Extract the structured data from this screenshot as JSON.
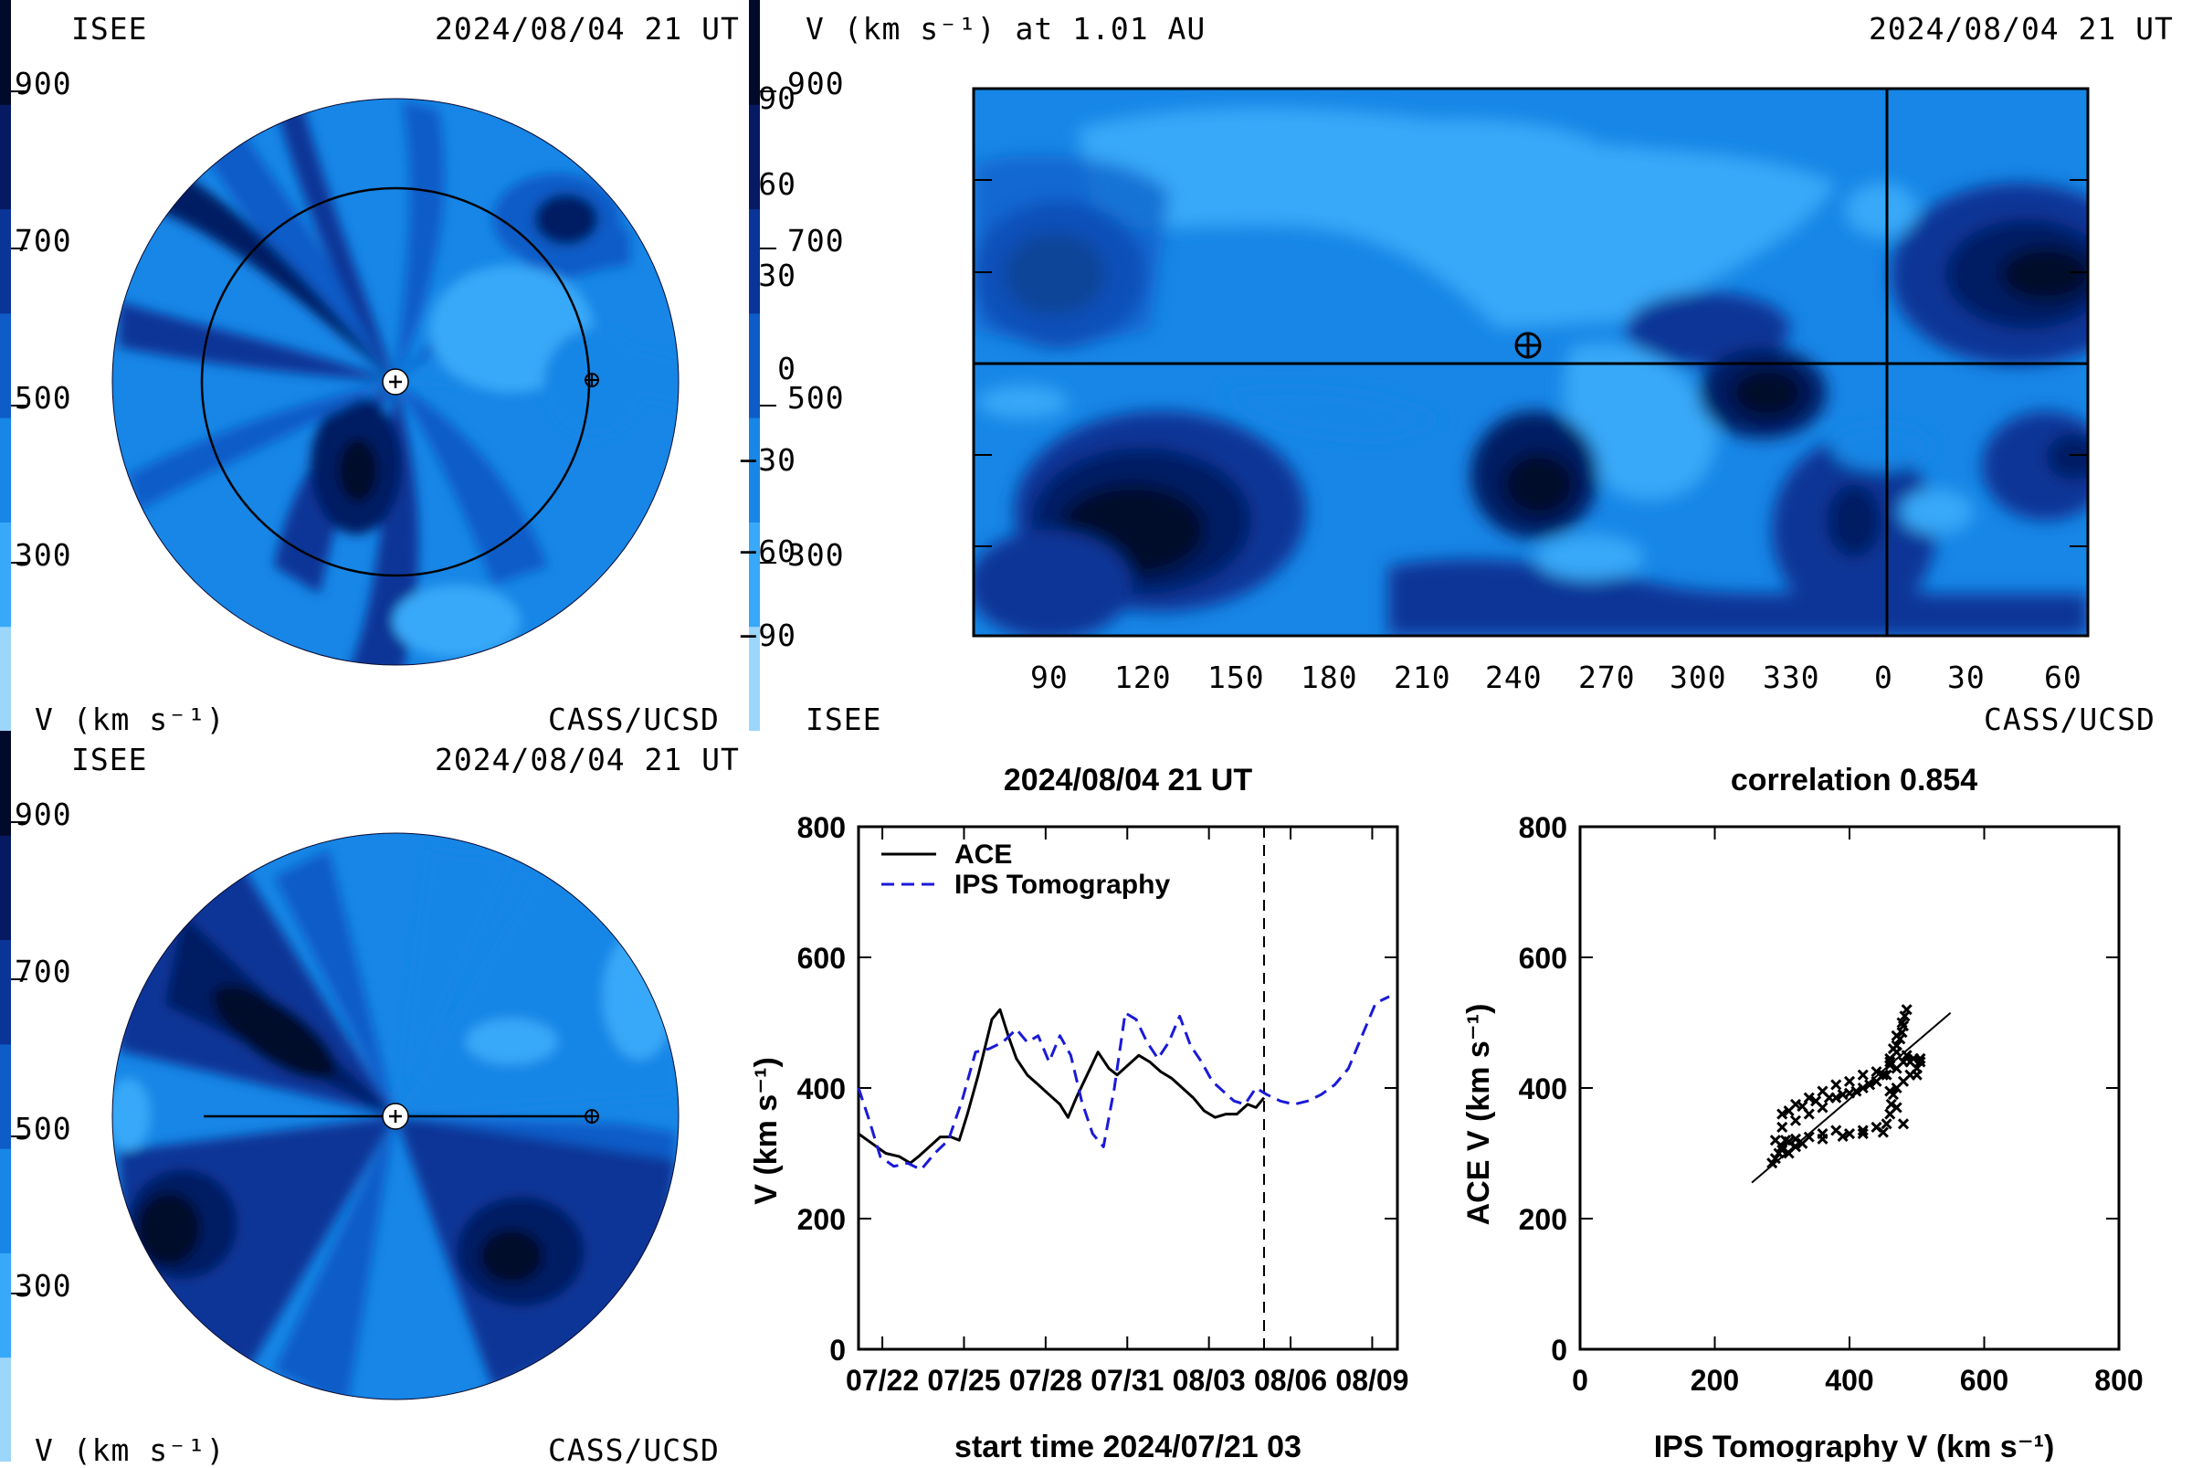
{
  "colorbar": {
    "colors": [
      "#9dd6fb",
      "#38a8f8",
      "#1786e6",
      "#0d5cc7",
      "#0a3497",
      "#061a63",
      "#020a2b"
    ],
    "ticks": [
      "900",
      "700",
      "500",
      "300"
    ]
  },
  "top_left": {
    "org_left": "ISEE",
    "datetime": "2024/08/04 21 UT",
    "units": "V (km s⁻¹)",
    "org_right": "CASS/UCSD"
  },
  "top_right": {
    "title": "V (km s⁻¹) at 1.01 AU",
    "datetime": "2024/08/04 21 UT",
    "org_left": "ISEE",
    "org_right": "CASS/UCSD",
    "y_ticks": [
      "90",
      "60",
      "30",
      "0",
      "−30",
      "−60",
      "−90"
    ],
    "x_ticks": [
      "90",
      "120",
      "150",
      "180",
      "210",
      "240",
      "270",
      "300",
      "330",
      "0",
      "30",
      "60"
    ]
  },
  "bottom_left": {
    "org_left": "ISEE",
    "datetime": "2024/08/04 21 UT",
    "units": "V (km s⁻¹)",
    "org_right": "CASS/UCSD"
  },
  "chart_data": [
    {
      "type": "line",
      "title": "2024/08/04 21 UT",
      "xlabel": "start time 2024/07/21 03",
      "ylabel": "V (km s⁻¹)",
      "ylim": [
        0,
        800
      ],
      "xlim": [
        0,
        19.8
      ],
      "x_tick_labels": [
        "07/22",
        "07/25",
        "07/28",
        "07/31",
        "08/03",
        "08/06",
        "08/09"
      ],
      "x_tick_positions": [
        0.875,
        3.875,
        6.875,
        9.875,
        12.875,
        15.875,
        18.875
      ],
      "y_ticks": [
        0,
        200,
        400,
        600,
        800
      ],
      "vline_x": 14.9,
      "series": [
        {
          "name": "ACE",
          "style": "solid",
          "color": "#000000",
          "x": [
            0,
            0.5,
            1,
            1.5,
            1.9,
            2.2,
            2.6,
            3.0,
            3.4,
            3.7,
            4.0,
            4.4,
            4.9,
            5.2,
            5.5,
            5.8,
            6.2,
            6.6,
            7.0,
            7.4,
            7.7,
            8.0,
            8.4,
            8.8,
            9.2,
            9.5,
            9.9,
            10.3,
            10.7,
            11.1,
            11.5,
            11.9,
            12.3,
            12.7,
            13.1,
            13.5,
            13.9,
            14.3,
            14.6,
            14.9
          ],
          "values": [
            330,
            315,
            300,
            295,
            285,
            295,
            310,
            325,
            325,
            320,
            360,
            420,
            505,
            520,
            480,
            445,
            420,
            405,
            390,
            375,
            355,
            385,
            420,
            455,
            430,
            420,
            435,
            450,
            440,
            425,
            415,
            400,
            385,
            365,
            355,
            360,
            360,
            375,
            370,
            385
          ]
        },
        {
          "name": "IPS Tomography",
          "style": "dashed",
          "color": "#1a1ad8",
          "x": [
            0,
            0.4,
            0.8,
            1.3,
            1.8,
            2.3,
            2.8,
            3.3,
            3.8,
            4.3,
            4.8,
            5.3,
            5.8,
            6.2,
            6.6,
            7.0,
            7.4,
            7.8,
            8.2,
            8.6,
            9.0,
            9.4,
            9.8,
            10.2,
            10.6,
            11.0,
            11.4,
            11.8,
            12.2,
            12.6,
            13.0,
            13.4,
            13.8,
            14.2,
            14.6,
            15.0,
            15.5,
            16.0,
            16.5,
            17.0,
            17.5,
            18.0,
            18.5,
            19.0,
            19.5
          ],
          "values": [
            400,
            350,
            295,
            280,
            285,
            275,
            300,
            320,
            380,
            455,
            460,
            470,
            490,
            470,
            480,
            440,
            480,
            450,
            380,
            330,
            310,
            400,
            515,
            505,
            470,
            445,
            470,
            510,
            465,
            440,
            410,
            395,
            380,
            375,
            400,
            390,
            380,
            375,
            380,
            390,
            405,
            430,
            480,
            530,
            540
          ]
        }
      ]
    },
    {
      "type": "scatter",
      "title": "correlation 0.854",
      "xlabel": "IPS Tomography V (km s⁻¹)",
      "ylabel": "ACE V (km s⁻¹)",
      "xlim": [
        0,
        800
      ],
      "ylim": [
        0,
        800
      ],
      "x_ticks": [
        0,
        200,
        400,
        600,
        800
      ],
      "y_ticks": [
        0,
        200,
        400,
        600,
        800
      ],
      "fit_line": {
        "x": [
          255,
          550
        ],
        "y": [
          255,
          515
        ]
      },
      "points": [
        [
          285,
          285
        ],
        [
          290,
          292
        ],
        [
          295,
          300
        ],
        [
          300,
          305
        ],
        [
          310,
          300
        ],
        [
          320,
          310
        ],
        [
          305,
          320
        ],
        [
          310,
          318
        ],
        [
          320,
          322
        ],
        [
          340,
          325
        ],
        [
          360,
          330
        ],
        [
          380,
          335
        ],
        [
          400,
          330
        ],
        [
          420,
          335
        ],
        [
          440,
          340
        ],
        [
          455,
          345
        ],
        [
          460,
          360
        ],
        [
          462,
          375
        ],
        [
          465,
          390
        ],
        [
          470,
          400
        ],
        [
          480,
          410
        ],
        [
          490,
          420
        ],
        [
          500,
          430
        ],
        [
          505,
          440
        ],
        [
          495,
          445
        ],
        [
          480,
          440
        ],
        [
          470,
          430
        ],
        [
          450,
          420
        ],
        [
          430,
          405
        ],
        [
          410,
          395
        ],
        [
          390,
          390
        ],
        [
          370,
          385
        ],
        [
          350,
          380
        ],
        [
          330,
          372
        ],
        [
          310,
          365
        ],
        [
          300,
          360
        ],
        [
          320,
          375
        ],
        [
          340,
          385
        ],
        [
          360,
          395
        ],
        [
          380,
          405
        ],
        [
          400,
          410
        ],
        [
          420,
          420
        ],
        [
          440,
          425
        ],
        [
          460,
          435
        ],
        [
          470,
          455
        ],
        [
          475,
          475
        ],
        [
          480,
          495
        ],
        [
          482,
          510
        ],
        [
          485,
          520
        ],
        [
          478,
          500
        ],
        [
          470,
          480
        ],
        [
          465,
          460
        ],
        [
          460,
          440
        ],
        [
          450,
          420
        ],
        [
          440,
          410
        ],
        [
          420,
          400
        ],
        [
          400,
          392
        ],
        [
          380,
          385
        ],
        [
          360,
          370
        ],
        [
          340,
          360
        ],
        [
          320,
          350
        ],
        [
          300,
          340
        ],
        [
          290,
          320
        ],
        [
          300,
          310
        ],
        [
          330,
          315
        ],
        [
          360,
          322
        ],
        [
          390,
          326
        ],
        [
          420,
          330
        ],
        [
          450,
          332
        ],
        [
          480,
          345
        ],
        [
          470,
          370
        ],
        [
          460,
          395
        ],
        [
          455,
          420
        ],
        [
          460,
          445
        ],
        [
          470,
          465
        ],
        [
          478,
          485
        ],
        [
          490,
          440
        ],
        [
          500,
          420
        ],
        [
          505,
          445
        ],
        [
          485,
          450
        ]
      ]
    }
  ]
}
